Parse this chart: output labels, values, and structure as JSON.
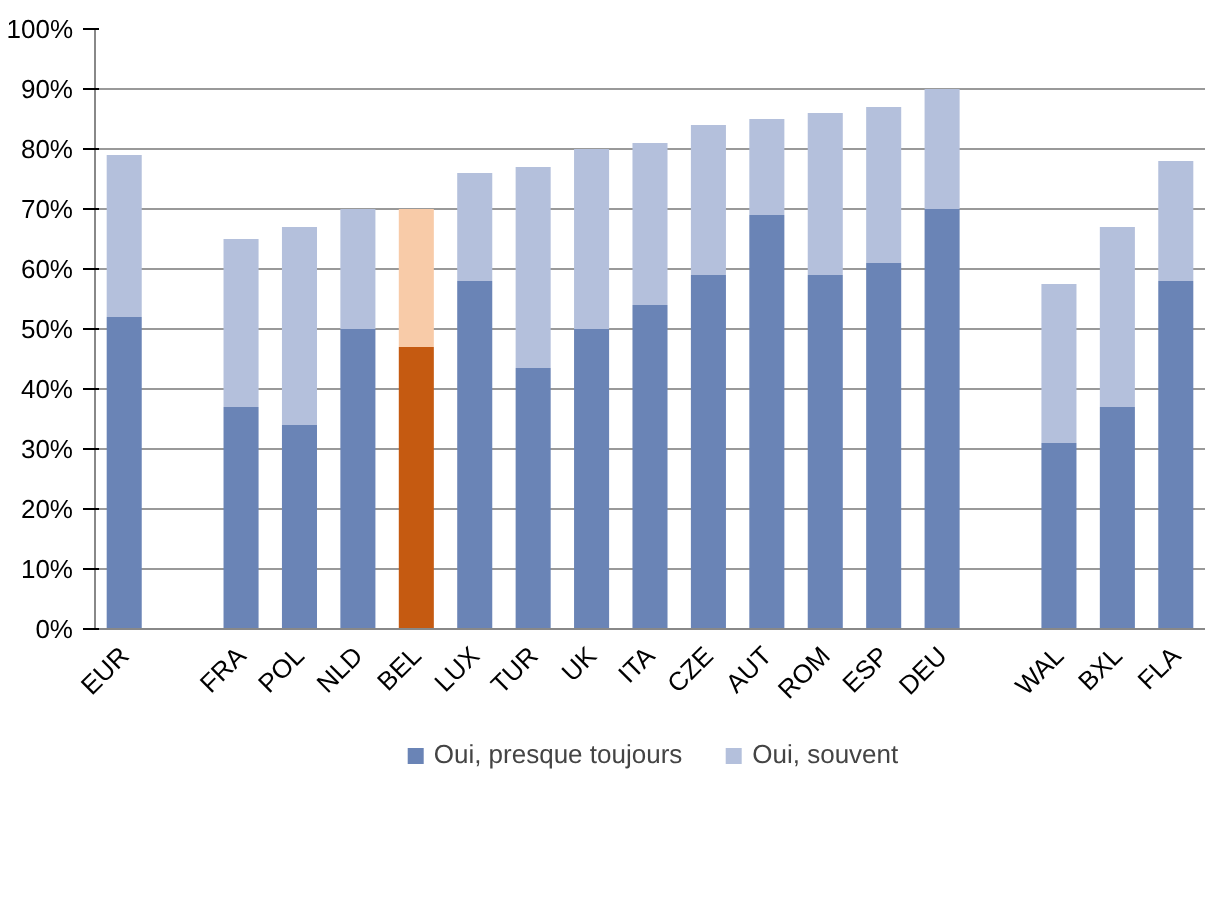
{
  "chart_data": {
    "type": "bar",
    "stacked": true,
    "categories": [
      "EUR",
      null,
      "FRA",
      "POL",
      "NLD",
      "BEL",
      "LUX",
      "TUR",
      "UK",
      "ITA",
      "CZE",
      "AUT",
      "ROM",
      "ESP",
      "DEU",
      null,
      "WAL",
      "BXL",
      "FLA"
    ],
    "series": [
      {
        "name": "Oui, presque toujours",
        "color": "#6a84b6",
        "colors": [
          "#6a84b6",
          "#6a84b6",
          "#6a84b6",
          "#6a84b6",
          "#6a84b6",
          "#c55a11",
          "#6a84b6",
          "#6a84b6",
          "#6a84b6",
          "#6a84b6",
          "#6a84b6",
          "#6a84b6",
          "#6a84b6",
          "#6a84b6",
          "#6a84b6",
          "#6a84b6",
          "#6a84b6",
          "#6a84b6",
          "#6a84b6"
        ],
        "values": [
          52,
          null,
          37,
          34,
          50,
          47,
          58,
          43.5,
          50,
          54,
          59,
          69,
          59,
          61,
          70,
          null,
          31,
          37,
          58
        ]
      },
      {
        "name": "Oui, souvent",
        "color": "#b4c0dc",
        "colors": [
          "#b4c0dc",
          "#b4c0dc",
          "#b4c0dc",
          "#b4c0dc",
          "#b4c0dc",
          "#f8cba8",
          "#b4c0dc",
          "#b4c0dc",
          "#b4c0dc",
          "#b4c0dc",
          "#b4c0dc",
          "#b4c0dc",
          "#b4c0dc",
          "#b4c0dc",
          "#b4c0dc",
          "#b4c0dc",
          "#b4c0dc",
          "#b4c0dc",
          "#b4c0dc"
        ],
        "values": [
          27,
          null,
          28,
          33,
          20,
          23,
          18,
          33.5,
          30,
          27,
          25,
          16,
          27,
          26,
          20,
          null,
          26.5,
          30,
          20
        ]
      }
    ],
    "ylim": [
      0,
      100
    ],
    "yticks": [
      {
        "value": 0,
        "label": "0%"
      },
      {
        "value": 10,
        "label": "10%"
      },
      {
        "value": 20,
        "label": "20%"
      },
      {
        "value": 30,
        "label": "30%"
      },
      {
        "value": 40,
        "label": "40%"
      },
      {
        "value": 50,
        "label": "50%"
      },
      {
        "value": 60,
        "label": "60%"
      },
      {
        "value": 70,
        "label": "70%"
      },
      {
        "value": 80,
        "label": "80%"
      },
      {
        "value": 90,
        "label": "90%"
      },
      {
        "value": 100,
        "label": "100%"
      }
    ],
    "grid": "y",
    "legend": "bottom"
  }
}
